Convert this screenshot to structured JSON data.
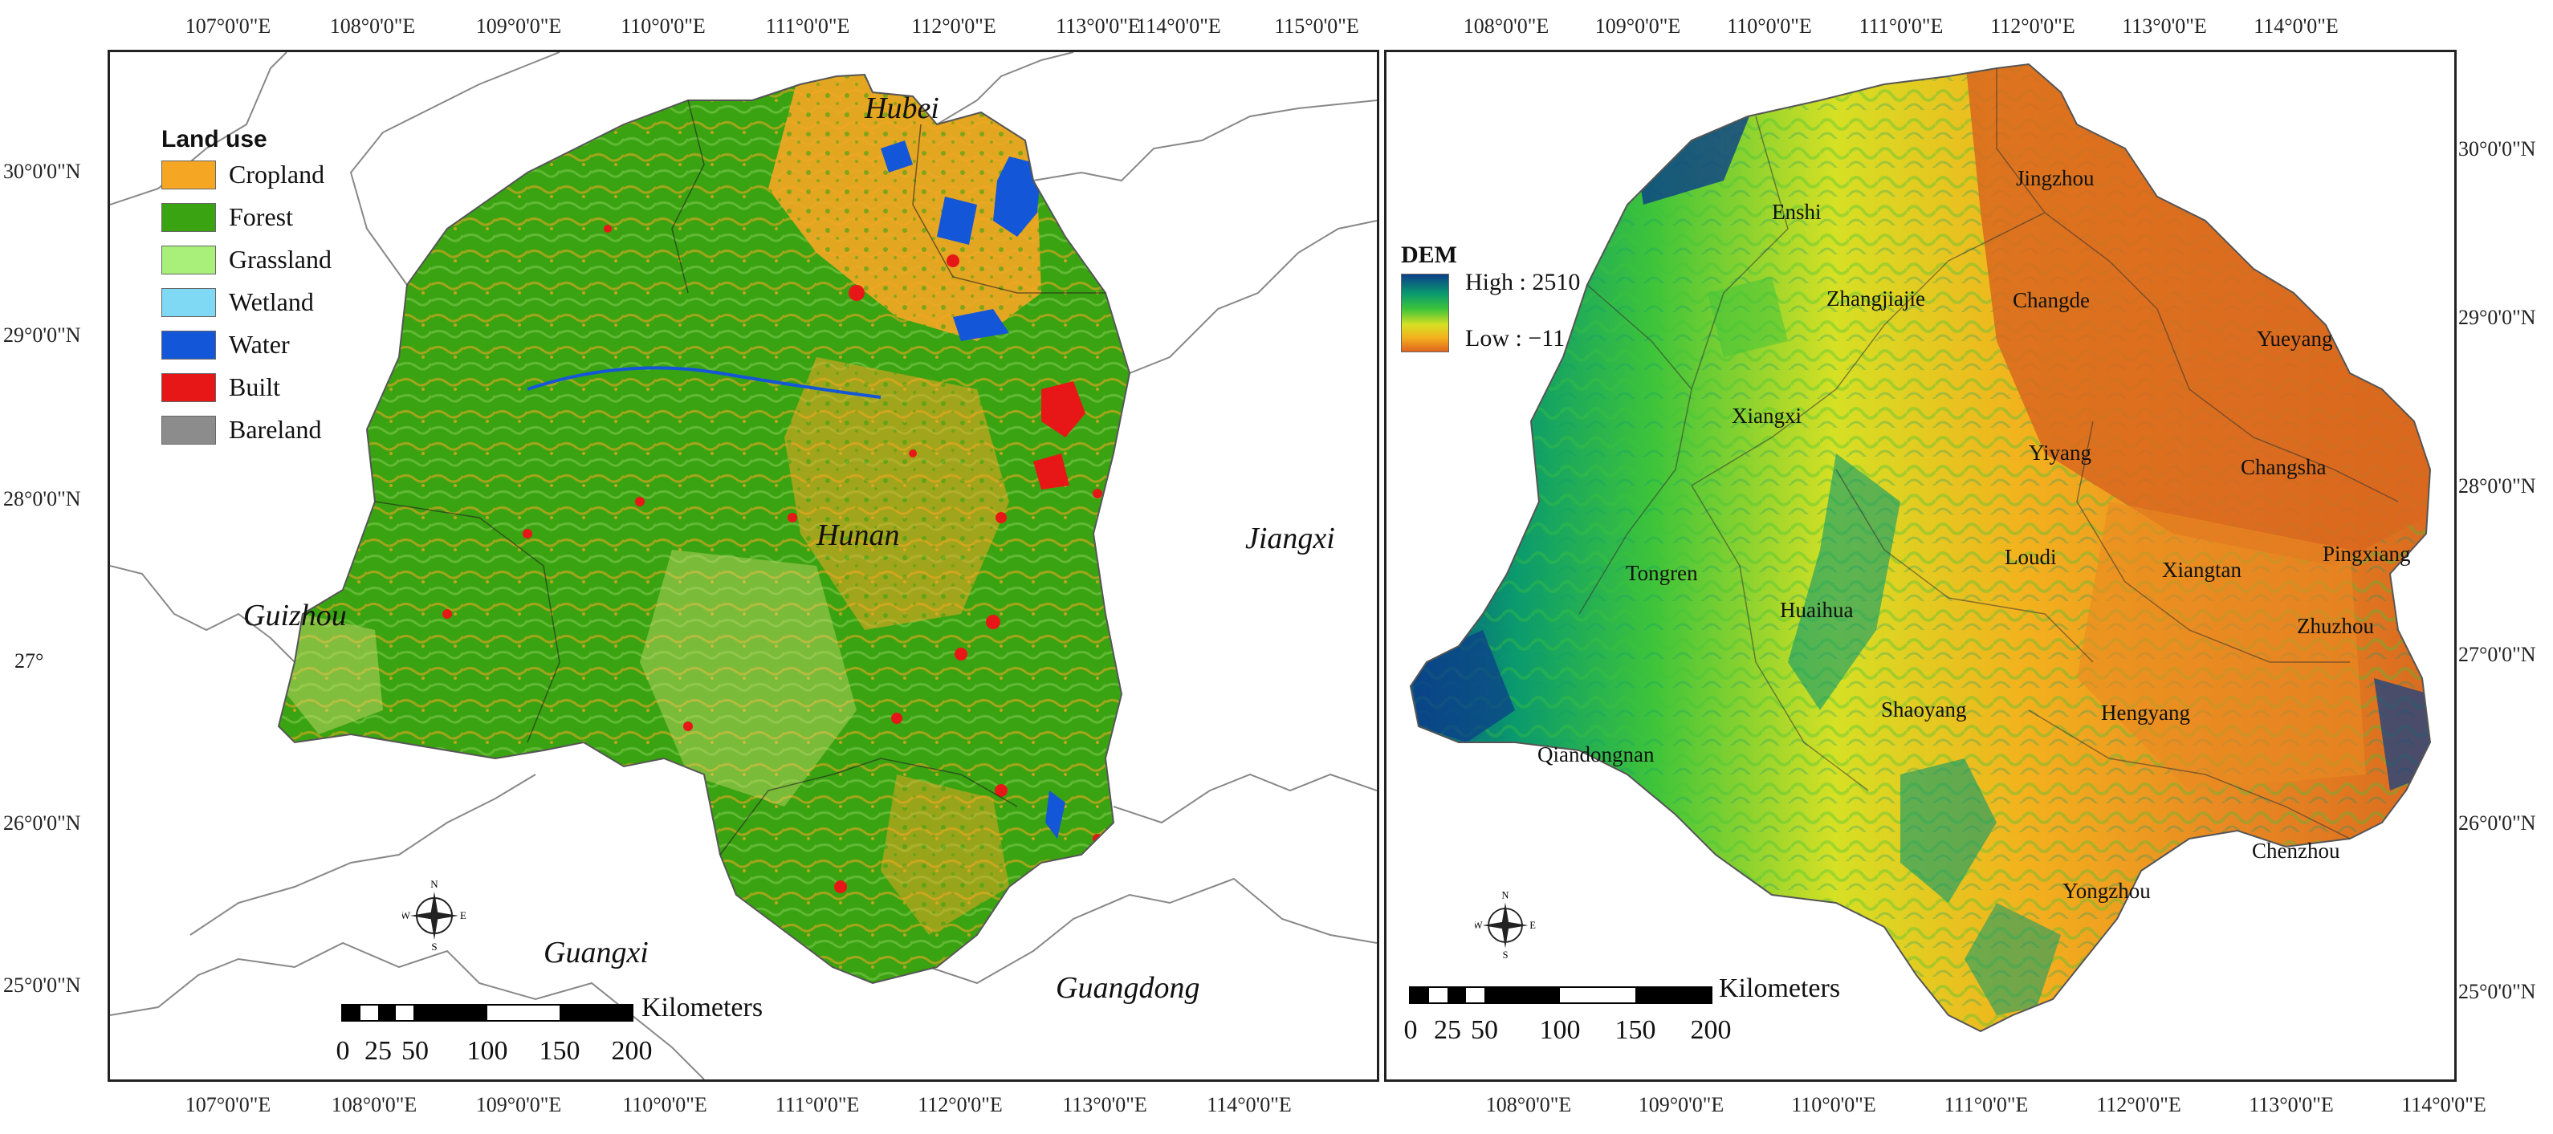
{
  "left_map": {
    "legend": {
      "title": "Land use",
      "items": [
        {
          "label": "Cropland",
          "color": "#f5a623"
        },
        {
          "label": "Forest",
          "color": "#3aa312"
        },
        {
          "label": "Grassland",
          "color": "#a8f07a"
        },
        {
          "label": "Wetland",
          "color": "#7fd8f4"
        },
        {
          "label": "Water",
          "color": "#1456d8"
        },
        {
          "label": "Built",
          "color": "#e81717"
        },
        {
          "label": "Bareland",
          "color": "#8c8c8c"
        }
      ]
    },
    "region_labels": [
      "Hubei",
      "Hunan",
      "Jiangxi",
      "Guizhou",
      "Guangxi",
      "Guangdong"
    ],
    "top_ticks": [
      "107°0'0\"E",
      "108°0'0\"E",
      "109°0'0\"E",
      "110°0'0\"E",
      "111°0'0\"E",
      "112°0'0\"E",
      "113°0'0\"E",
      "114°0'0\"E",
      "115°0'0\"E"
    ],
    "bottom_ticks": [
      "107°0'0\"E",
      "108°0'0\"E",
      "109°0'0\"E",
      "110°0'0\"E",
      "111°0'0\"E",
      "112°0'0\"E",
      "113°0'0\"E",
      "114°0'0\"E"
    ],
    "left_ticks": [
      "30°0'0\"N",
      "29°0'0\"N",
      "28°0'0\"N",
      "27°",
      "26°0'0\"N",
      "25°0'0\"N"
    ],
    "scale": {
      "numbers": [
        "0",
        "25",
        "50",
        "100",
        "150",
        "200"
      ],
      "unit": "Kilometers"
    },
    "compass": {
      "icon": "compass-rose-icon",
      "letters": [
        "N",
        "E",
        "S",
        "W"
      ]
    }
  },
  "right_map": {
    "legend": {
      "title": "DEM",
      "high": "High : 2510",
      "low": "Low : −11"
    },
    "cities": [
      "Jingzhou",
      "Enshi",
      "Zhangjiajie",
      "Changde",
      "Yueyang",
      "Xiangxi",
      "Yiyang",
      "Changsha",
      "Loudi",
      "Xiangtan",
      "Pingxiang",
      "Tongren",
      "Huaihua",
      "Zhuzhou",
      "Shaoyang",
      "Hengyang",
      "Qiandongnan",
      "Chenzhou",
      "Yongzhou"
    ],
    "top_ticks": [
      "108°0'0\"E",
      "109°0'0\"E",
      "110°0'0\"E",
      "111°0'0\"E",
      "112°0'0\"E",
      "113°0'0\"E",
      "114°0'0\"E"
    ],
    "bottom_ticks": [
      "108°0'0\"E",
      "109°0'0\"E",
      "110°0'0\"E",
      "111°0'0\"E",
      "112°0'0\"E",
      "113°0'0\"E",
      "114°0'0\"E"
    ],
    "right_ticks": [
      "30°0'0\"N",
      "29°0'0\"N",
      "28°0'0\"N",
      "27°0'0\"N",
      "26°0'0\"N",
      "25°0'0\"N"
    ],
    "scale": {
      "numbers": [
        "0",
        "25",
        "50",
        "100",
        "150",
        "200"
      ],
      "unit": "Kilometers"
    },
    "compass": {
      "icon": "compass-rose-icon",
      "letters": [
        "N",
        "E",
        "S",
        "W"
      ]
    }
  }
}
